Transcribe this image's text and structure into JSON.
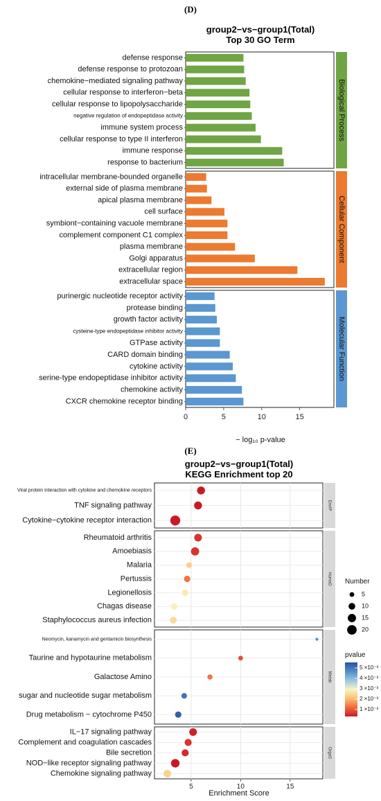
{
  "chart_data": [
    {
      "type": "bar",
      "orientation": "horizontal",
      "panel_label": "(D)",
      "title": "group2−vs−group1(Total)",
      "subtitle": "Top 30 GO Term",
      "xlabel": "− log₁₀ p-value",
      "xlim": [
        0,
        19.5
      ],
      "xticks": [
        0,
        5,
        10,
        15
      ],
      "grid": false,
      "groups": [
        {
          "name": "Biological Process",
          "color": "#6fa544",
          "categories": [
            "defense response",
            "defense response to protozoan",
            "chemokine−mediated signaling pathway",
            "cellular response to interferon−beta",
            "cellular response to lipopolysaccharide",
            "negative regulation of endopeptidase activity",
            "immune system process",
            "cellular response to type II interferon",
            "immune response",
            "response to bacterium"
          ],
          "values": [
            7.6,
            7.7,
            7.9,
            8.4,
            8.5,
            8.7,
            9.2,
            9.9,
            12.7,
            12.9
          ]
        },
        {
          "name": "Cellular Component",
          "color": "#ec7a30",
          "categories": [
            "intracellular membrane-bounded organelle",
            "external side of plasma membrane",
            "apical plasma membrane",
            "cell surface",
            "symbiont−containing vacuole membrane",
            "complement component C1 complex",
            "plasma membrane",
            "Golgi apparatus",
            "extracellular region",
            "extracellular space"
          ],
          "values": [
            2.7,
            2.8,
            3.4,
            5.1,
            5.5,
            5.5,
            6.5,
            9.1,
            14.7,
            18.3
          ]
        },
        {
          "name": "Molecular Function",
          "color": "#5b97d0",
          "categories": [
            "purinergic nucleotide receptor activity",
            "protease binding",
            "growth factor activity",
            "cysteine-type endopeptidase inhibitor activity",
            "GTPase activity",
            "CARD domain binding",
            "cytokine activity",
            "serine-type endopeptidase inhibitor activity",
            "chemokine activity",
            "CXCR chemokine receptor binding"
          ],
          "values": [
            3.8,
            3.9,
            4.1,
            4.5,
            4.5,
            5.8,
            6.2,
            6.6,
            7.4,
            7.6
          ]
        }
      ]
    },
    {
      "type": "scatter",
      "panel_label": "(E)",
      "title": "group2−vs−group1(Total)",
      "subtitle": "KEGG Enrichment top 20",
      "xlabel": "Enrichment Score",
      "xlim": [
        1.3,
        18.3
      ],
      "xticks": [
        5,
        10,
        15
      ],
      "grid": true,
      "size_legend": {
        "title": "Number",
        "values": [
          5,
          10,
          15,
          20
        ]
      },
      "color_legend": {
        "title": "pvalue",
        "labels": [
          "5 ×10⁻³",
          "4 ×10⁻³",
          "3 ×10⁻³",
          "2 ×10⁻³",
          "1 ×10⁻³"
        ],
        "colors": [
          "#2c4fa3",
          "#4e8fc6",
          "#9cc6e1",
          "#f7f4c4",
          "#fcbf72",
          "#ef6a3d",
          "#c81a26"
        ]
      },
      "facets": [
        {
          "name": "EnvIP",
          "points": [
            {
              "label": "Viral protein interaction with cytokine and chemokine receptors",
              "x": 6.0,
              "count": 14,
              "pvalue": 0.0002
            },
            {
              "label": "TNF signaling pathway",
              "x": 5.7,
              "count": 14,
              "pvalue": 0.0002
            },
            {
              "label": "Cytokine−cytokine receptor interaction",
              "x": 3.4,
              "count": 22,
              "pvalue": 0.0002
            }
          ]
        },
        {
          "name": "HumaD",
          "points": [
            {
              "label": "Rheumatoid arthritis",
              "x": 5.7,
              "count": 13,
              "pvalue": 0.0005
            },
            {
              "label": "Amoebiasis",
              "x": 5.4,
              "count": 15,
              "pvalue": 0.0005
            },
            {
              "label": "Malaria",
              "x": 4.8,
              "count": 7,
              "pvalue": 0.0022
            },
            {
              "label": "Pertussis",
              "x": 4.6,
              "count": 9,
              "pvalue": 0.0012
            },
            {
              "label": "Legionellosis",
              "x": 4.4,
              "count": 9,
              "pvalue": 0.0027
            },
            {
              "label": "Chagas disease",
              "x": 3.3,
              "count": 10,
              "pvalue": 0.0028
            },
            {
              "label": "Staphylococcus aureus infection",
              "x": 3.2,
              "count": 10,
              "pvalue": 0.0024
            }
          ]
        },
        {
          "name": "Metab",
          "points": [
            {
              "label": "Neomycin, kanamycin and gentamicin biosynthesis",
              "x": 17.7,
              "count": 2,
              "pvalue": 0.0045
            },
            {
              "label": "Taurine and hypotaurine metabolism",
              "x": 10.0,
              "count": 5,
              "pvalue": 0.0008
            },
            {
              "label": "Galactose Amino",
              "x": 6.9,
              "count": 6,
              "pvalue": 0.0012
            },
            {
              "label": "sugar and nucleotide sugar metabolism",
              "x": 4.3,
              "count": 7,
              "pvalue": 0.005
            },
            {
              "label": "Drug metabolism − cytochrome P450",
              "x": 3.7,
              "count": 9,
              "pvalue": 0.0053
            }
          ]
        },
        {
          "name": "OrgaS",
          "points": [
            {
              "label": "IL−17 signaling pathway",
              "x": 5.2,
              "count": 13,
              "pvalue": 0.0003
            },
            {
              "label": "Complement and coagulation cascades",
              "x": 4.7,
              "count": 11,
              "pvalue": 0.0005
            },
            {
              "label": "Bile secretion",
              "x": 4.4,
              "count": 11,
              "pvalue": 0.0004
            },
            {
              "label": "NOD−like receptor signaling pathway",
              "x": 3.4,
              "count": 16,
              "pvalue": 0.0002
            },
            {
              "label": "Chemokine signaling pathway",
              "x": 2.6,
              "count": 13,
              "pvalue": 0.0023
            }
          ]
        }
      ]
    }
  ]
}
